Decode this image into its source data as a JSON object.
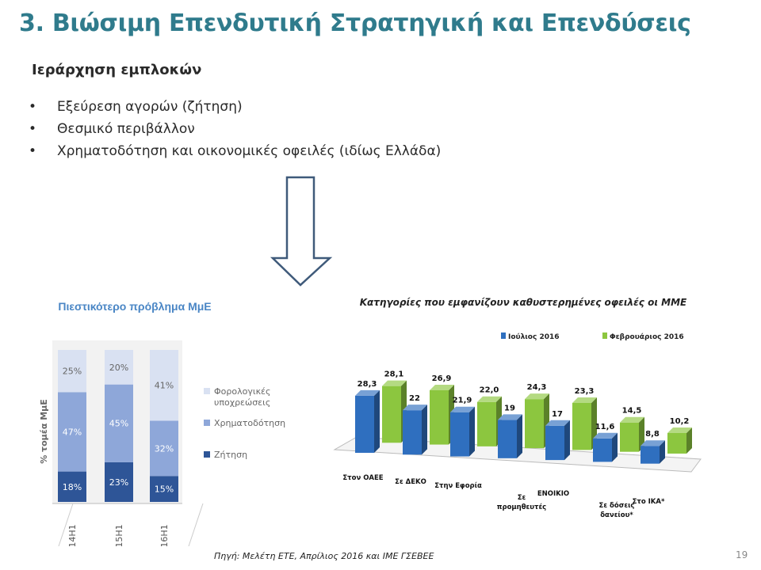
{
  "slide": {
    "title": "3. Βιώσιμη Επενδυτική Στρατηγική και Επενδύσεις",
    "subtitle": "Ιεράρχηση εμπλοκών",
    "bullets": [
      "Εξεύρεση αγορών (ζήτηση)",
      "Θεσμικό περιβάλλον",
      "Χρηματοδότηση και οικονομικές οφειλές (ιδίως Ελλάδα)"
    ],
    "bullet_char": "•",
    "source": "Πηγή: Μελέτη ΕΤΕ, Απρίλιος 2016 και ΙΜΕ ΓΣΕΒΕΕ",
    "page_number": "19"
  },
  "chart_data": [
    {
      "type": "bar",
      "stacked": true,
      "title": "Πιεστικότερο πρόβλημα ΜμΕ",
      "ylabel": "% τομέα ΜμΕ",
      "categories": [
        "2014H1",
        "2015H1",
        "2016H1"
      ],
      "series": [
        {
          "name": "Ζήτηση",
          "values": [
            18,
            23,
            15
          ],
          "labels": [
            "18%",
            "23%",
            "15%"
          ],
          "color": "#2e5597"
        },
        {
          "name": "Χρηματοδότηση",
          "values": [
            47,
            45,
            32
          ],
          "labels": [
            "47%",
            "45%",
            "32%"
          ],
          "color": "#8ea7d9"
        },
        {
          "name": "Φορολογικές υποχρεώσεις",
          "values": [
            25,
            20,
            41
          ],
          "labels": [
            "25%",
            "20%",
            "41%"
          ],
          "color": "#d9e1f2"
        }
      ],
      "legend_position": "right"
    },
    {
      "type": "bar",
      "title": "Κατηγορίες που εμφανίζουν καθυστερημένες οφειλές οι ΜΜΕ",
      "categories": [
        "Στον ΟΑΕΕ",
        "Σε ΔΕΚΟ",
        "Στην Εφορία",
        "Σε προμηθευτές",
        "ΕΝΟΙΚΙΟ",
        "Σε δόσεις δανείου*",
        "Στο ΙΚΑ*"
      ],
      "series": [
        {
          "name": "Ιούλιος 2016",
          "values": [
            28.3,
            22,
            21.9,
            19,
            17,
            11.6,
            8.8
          ],
          "labels": [
            "28,3",
            "22",
            "21,9",
            "19",
            "17",
            "11,6",
            "8,8"
          ],
          "color": "#2f6fbf"
        },
        {
          "name": "Φεβρουάριος 2016",
          "values": [
            28.1,
            26.9,
            22.0,
            24.3,
            23.3,
            14.5,
            10.2
          ],
          "labels": [
            "28,1",
            "26,9",
            "22,0",
            "24,3",
            "23,3",
            "14,5",
            "10,2"
          ],
          "color": "#8cc63f"
        }
      ],
      "legend_position": "top",
      "grid": false
    }
  ]
}
